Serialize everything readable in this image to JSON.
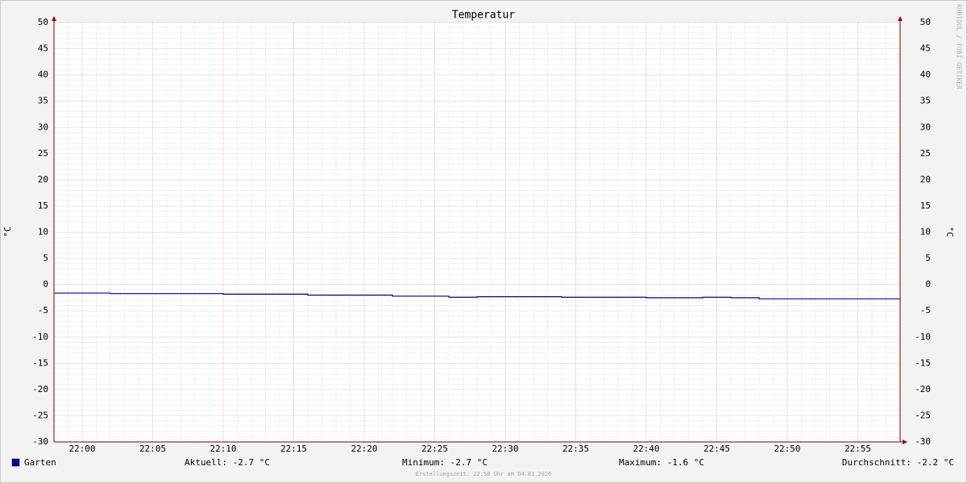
{
  "chart_data": {
    "type": "line",
    "title": "Temperatur",
    "y_label": "°C",
    "watermark": "RRDTOOL / TOBI OETIKER",
    "step": true,
    "x": [
      "21:58",
      "22:02",
      "22:10",
      "22:16",
      "22:22",
      "22:26",
      "22:28",
      "22:34",
      "22:40",
      "22:44",
      "22:46",
      "22:48",
      "22:58"
    ],
    "series": [
      {
        "name": "Garten",
        "color": "#00008b",
        "values": [
          -1.6,
          -1.7,
          -1.8,
          -2.0,
          -2.2,
          -2.4,
          -2.3,
          -2.4,
          -2.5,
          -2.4,
          -2.5,
          -2.7,
          -2.7
        ]
      }
    ],
    "xlim": [
      "21:58",
      "22:58"
    ],
    "xticks": [
      "22:00",
      "22:05",
      "22:10",
      "22:15",
      "22:20",
      "22:25",
      "22:30",
      "22:35",
      "22:40",
      "22:45",
      "22:50",
      "22:55"
    ],
    "ylim": [
      -30,
      50
    ],
    "yticks": [
      -30,
      -25,
      -20,
      -15,
      -10,
      -5,
      0,
      5,
      10,
      15,
      20,
      25,
      30,
      35,
      40,
      45,
      50
    ],
    "grid": true,
    "legend_stats": [
      "Aktuell: -2.7 °C",
      "Minimum: -2.7 °C",
      "Maximum: -1.6 °C",
      "Durchschnitt: -2.2 °C"
    ],
    "footer": "Erstellungszeit: 22:58 Uhr am 04.01.2026"
  }
}
